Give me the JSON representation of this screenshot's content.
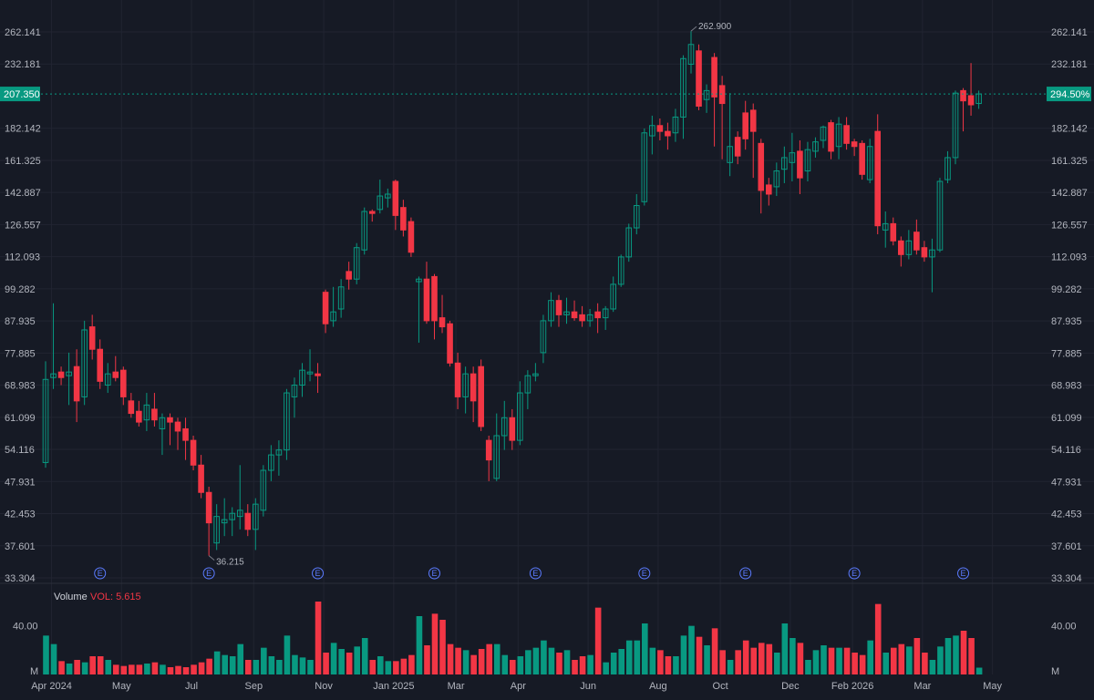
{
  "colors": {
    "background": "#161a25",
    "grid": "#212431",
    "up": "#089981",
    "down": "#f23645",
    "text": "#b2b5be",
    "last_price_tag": "#089981",
    "earnings": "#5b7bff"
  },
  "chart_data": {
    "type": "candlestick",
    "y_scale": "log",
    "ylim": [
      33.304,
      262.141
    ],
    "y_ticks": [
      "262.141",
      "232.181",
      "182.142",
      "161.325",
      "142.887",
      "126.557",
      "112.093",
      "99.282",
      "87.935",
      "77.885",
      "68.983",
      "61.099",
      "54.116",
      "47.931",
      "42.453",
      "37.601",
      "33.304"
    ],
    "x_ticks": [
      "Apr 2024",
      "May",
      "Jul",
      "Sep",
      "Nov",
      "Jan 2025",
      "Mar",
      "Apr",
      "Jun",
      "Aug",
      "Oct",
      "Dec",
      "Feb 2026",
      "Mar",
      "May"
    ],
    "last_price": {
      "value": "207.350",
      "change": "294.50%"
    },
    "annotations": {
      "high": "262.900",
      "low": "36.215"
    },
    "earnings_label": "E",
    "earnings_count": 9,
    "volume": {
      "title": "Volume",
      "value_label": "VOL: 5.615",
      "ticks": [
        "40.00",
        "M"
      ],
      "max": 60
    },
    "candles": [
      {
        "o": 51.5,
        "h": 75.5,
        "l": 50.5,
        "c": 70.5,
        "v": 32
      },
      {
        "o": 71.0,
        "h": 94.0,
        "l": 68.0,
        "c": 72.0,
        "v": 25
      },
      {
        "o": 72.5,
        "h": 74.0,
        "l": 69.0,
        "c": 71.0,
        "v": 11
      },
      {
        "o": 71.5,
        "h": 78.0,
        "l": 64.0,
        "c": 72.5,
        "v": 9
      },
      {
        "o": 74.0,
        "h": 79.0,
        "l": 60.0,
        "c": 65.0,
        "v": 12
      },
      {
        "o": 66.0,
        "h": 88.0,
        "l": 64.0,
        "c": 85.0,
        "v": 10
      },
      {
        "o": 86.0,
        "h": 90.0,
        "l": 76.0,
        "c": 79.0,
        "v": 15
      },
      {
        "o": 79.0,
        "h": 82.0,
        "l": 68.0,
        "c": 70.0,
        "v": 15
      },
      {
        "o": 69.0,
        "h": 75.0,
        "l": 67.0,
        "c": 72.0,
        "v": 12
      },
      {
        "o": 72.5,
        "h": 77.0,
        "l": 70.0,
        "c": 71.0,
        "v": 8
      },
      {
        "o": 73.0,
        "h": 74.0,
        "l": 64.0,
        "c": 66.0,
        "v": 7
      },
      {
        "o": 65.0,
        "h": 67.0,
        "l": 61.0,
        "c": 62.0,
        "v": 8
      },
      {
        "o": 62.5,
        "h": 65.0,
        "l": 59.0,
        "c": 60.0,
        "v": 8
      },
      {
        "o": 60.5,
        "h": 67.0,
        "l": 58.0,
        "c": 64.0,
        "v": 9
      },
      {
        "o": 63.0,
        "h": 67.0,
        "l": 59.0,
        "c": 60.5,
        "v": 10
      },
      {
        "o": 58.5,
        "h": 62.0,
        "l": 53.0,
        "c": 61.0,
        "v": 8
      },
      {
        "o": 61.0,
        "h": 62.0,
        "l": 55.0,
        "c": 60.0,
        "v": 6
      },
      {
        "o": 60.0,
        "h": 61.0,
        "l": 54.0,
        "c": 58.0,
        "v": 7
      },
      {
        "o": 58.5,
        "h": 61.0,
        "l": 52.0,
        "c": 56.0,
        "v": 6
      },
      {
        "o": 56.0,
        "h": 57.0,
        "l": 50.0,
        "c": 51.0,
        "v": 8
      },
      {
        "o": 51.0,
        "h": 53.0,
        "l": 45.0,
        "c": 46.0,
        "v": 10
      },
      {
        "o": 46.0,
        "h": 47.0,
        "l": 36.215,
        "c": 41.0,
        "v": 13
      },
      {
        "o": 38.0,
        "h": 44.0,
        "l": 37.0,
        "c": 42.0,
        "v": 19
      },
      {
        "o": 41.0,
        "h": 45.0,
        "l": 39.0,
        "c": 41.5,
        "v": 16
      },
      {
        "o": 41.5,
        "h": 43.5,
        "l": 39.0,
        "c": 42.5,
        "v": 15
      },
      {
        "o": 42.0,
        "h": 51.0,
        "l": 40.0,
        "c": 43.0,
        "v": 25
      },
      {
        "o": 42.5,
        "h": 44.0,
        "l": 39.0,
        "c": 40.0,
        "v": 12
      },
      {
        "o": 40.0,
        "h": 45.0,
        "l": 37.0,
        "c": 44.0,
        "v": 12
      },
      {
        "o": 43.0,
        "h": 51.0,
        "l": 42.0,
        "c": 50.0,
        "v": 22
      },
      {
        "o": 50.0,
        "h": 55.0,
        "l": 48.0,
        "c": 53.0,
        "v": 15
      },
      {
        "o": 53.0,
        "h": 56.0,
        "l": 49.0,
        "c": 54.0,
        "v": 12
      },
      {
        "o": 54.0,
        "h": 68.0,
        "l": 52.0,
        "c": 67.0,
        "v": 32
      },
      {
        "o": 66.0,
        "h": 71.0,
        "l": 61.0,
        "c": 69.0,
        "v": 16
      },
      {
        "o": 69.0,
        "h": 75.0,
        "l": 66.0,
        "c": 73.0,
        "v": 14
      },
      {
        "o": 72.0,
        "h": 79.0,
        "l": 70.0,
        "c": 72.5,
        "v": 12
      },
      {
        "o": 72.0,
        "h": 75.0,
        "l": 67.0,
        "c": 71.5,
        "v": 60
      },
      {
        "o": 98.0,
        "h": 99.0,
        "l": 84.0,
        "c": 87.0,
        "v": 18
      },
      {
        "o": 88.0,
        "h": 100.0,
        "l": 86.0,
        "c": 91.0,
        "v": 26
      },
      {
        "o": 92.0,
        "h": 103.0,
        "l": 89.0,
        "c": 100.0,
        "v": 21
      },
      {
        "o": 106.0,
        "h": 110.0,
        "l": 99.0,
        "c": 103.0,
        "v": 18
      },
      {
        "o": 103.0,
        "h": 118.0,
        "l": 101.0,
        "c": 116.0,
        "v": 23
      },
      {
        "o": 115.0,
        "h": 135.0,
        "l": 113.0,
        "c": 133.0,
        "v": 30
      },
      {
        "o": 133.0,
        "h": 134.0,
        "l": 128.0,
        "c": 132.0,
        "v": 12
      },
      {
        "o": 134.0,
        "h": 150.0,
        "l": 132.0,
        "c": 141.0,
        "v": 15
      },
      {
        "o": 140.0,
        "h": 145.0,
        "l": 135.0,
        "c": 142.0,
        "v": 11
      },
      {
        "o": 149.0,
        "h": 150.0,
        "l": 124.0,
        "c": 131.0,
        "v": 11
      },
      {
        "o": 135.0,
        "h": 139.0,
        "l": 121.0,
        "c": 124.0,
        "v": 13
      },
      {
        "o": 128.0,
        "h": 130.0,
        "l": 112.0,
        "c": 114.0,
        "v": 16
      },
      {
        "o": 102.0,
        "h": 104.0,
        "l": 81.0,
        "c": 103.0,
        "v": 48
      },
      {
        "o": 103.0,
        "h": 110.0,
        "l": 87.0,
        "c": 88.0,
        "v": 24
      },
      {
        "o": 104.0,
        "h": 105.0,
        "l": 82.0,
        "c": 88.0,
        "v": 50
      },
      {
        "o": 89.0,
        "h": 97.0,
        "l": 84.0,
        "c": 86.0,
        "v": 45
      },
      {
        "o": 87.0,
        "h": 88.0,
        "l": 74.0,
        "c": 75.0,
        "v": 25
      },
      {
        "o": 75.0,
        "h": 78.0,
        "l": 63.0,
        "c": 66.0,
        "v": 22
      },
      {
        "o": 66.0,
        "h": 74.0,
        "l": 62.0,
        "c": 72.0,
        "v": 20
      },
      {
        "o": 72.0,
        "h": 74.0,
        "l": 60.0,
        "c": 65.0,
        "v": 16
      },
      {
        "o": 74.0,
        "h": 76.0,
        "l": 58.0,
        "c": 59.0,
        "v": 21
      },
      {
        "o": 56.0,
        "h": 57.0,
        "l": 48.0,
        "c": 52.0,
        "v": 25
      },
      {
        "o": 48.5,
        "h": 62.0,
        "l": 48.0,
        "c": 57.0,
        "v": 25
      },
      {
        "o": 57.0,
        "h": 65.0,
        "l": 54.0,
        "c": 61.0,
        "v": 16
      },
      {
        "o": 61.0,
        "h": 63.0,
        "l": 54.0,
        "c": 56.0,
        "v": 12
      },
      {
        "o": 56.0,
        "h": 70.0,
        "l": 55.0,
        "c": 67.0,
        "v": 15
      },
      {
        "o": 67.0,
        "h": 73.0,
        "l": 63.0,
        "c": 71.5,
        "v": 20
      },
      {
        "o": 71.5,
        "h": 75.0,
        "l": 70.0,
        "c": 72.0,
        "v": 22
      },
      {
        "o": 78.0,
        "h": 90.0,
        "l": 75.0,
        "c": 88.0,
        "v": 28
      },
      {
        "o": 88.0,
        "h": 98.0,
        "l": 86.0,
        "c": 95.0,
        "v": 22
      },
      {
        "o": 95.0,
        "h": 97.0,
        "l": 86.0,
        "c": 90.0,
        "v": 18
      },
      {
        "o": 90.0,
        "h": 96.0,
        "l": 87.0,
        "c": 91.0,
        "v": 20
      },
      {
        "o": 91.0,
        "h": 95.0,
        "l": 88.0,
        "c": 89.0,
        "v": 12
      },
      {
        "o": 90.0,
        "h": 93.0,
        "l": 86.0,
        "c": 88.0,
        "v": 15
      },
      {
        "o": 88.0,
        "h": 92.0,
        "l": 86.0,
        "c": 90.0,
        "v": 16
      },
      {
        "o": 91.0,
        "h": 94.0,
        "l": 84.0,
        "c": 89.0,
        "v": 55
      },
      {
        "o": 89.0,
        "h": 93.0,
        "l": 85.0,
        "c": 92.0,
        "v": 10
      },
      {
        "o": 92.0,
        "h": 104.0,
        "l": 91.0,
        "c": 101.0,
        "v": 18
      },
      {
        "o": 101.0,
        "h": 113.0,
        "l": 100.0,
        "c": 112.0,
        "v": 21
      },
      {
        "o": 112.0,
        "h": 127.0,
        "l": 110.0,
        "c": 125.0,
        "v": 28
      },
      {
        "o": 125.0,
        "h": 142.0,
        "l": 122.0,
        "c": 136.0,
        "v": 28
      },
      {
        "o": 138.0,
        "h": 182.0,
        "l": 136.0,
        "c": 179.0,
        "v": 42
      },
      {
        "o": 177.0,
        "h": 191.0,
        "l": 165.0,
        "c": 184.0,
        "v": 22
      },
      {
        "o": 184.0,
        "h": 189.0,
        "l": 174.0,
        "c": 180.0,
        "v": 20
      },
      {
        "o": 180.0,
        "h": 186.0,
        "l": 168.0,
        "c": 177.0,
        "v": 15
      },
      {
        "o": 179.0,
        "h": 196.0,
        "l": 173.0,
        "c": 190.0,
        "v": 15
      },
      {
        "o": 190.0,
        "h": 240.0,
        "l": 175.0,
        "c": 237.0,
        "v": 32
      },
      {
        "o": 232.0,
        "h": 262.9,
        "l": 224.0,
        "c": 250.0,
        "v": 40
      },
      {
        "o": 244.0,
        "h": 250.0,
        "l": 195.0,
        "c": 198.0,
        "v": 31
      },
      {
        "o": 203.0,
        "h": 215.0,
        "l": 193.0,
        "c": 210.0,
        "v": 24
      },
      {
        "o": 238.0,
        "h": 242.0,
        "l": 170.0,
        "c": 205.0,
        "v": 38
      },
      {
        "o": 214.0,
        "h": 222.0,
        "l": 162.0,
        "c": 200.0,
        "v": 20
      },
      {
        "o": 160.0,
        "h": 208.0,
        "l": 152.0,
        "c": 170.0,
        "v": 12
      },
      {
        "o": 176.0,
        "h": 180.0,
        "l": 159.0,
        "c": 164.0,
        "v": 20
      },
      {
        "o": 193.0,
        "h": 202.0,
        "l": 168.0,
        "c": 175.0,
        "v": 28
      },
      {
        "o": 195.0,
        "h": 200.0,
        "l": 151.0,
        "c": 180.0,
        "v": 22
      },
      {
        "o": 172.0,
        "h": 175.0,
        "l": 132.0,
        "c": 144.0,
        "v": 26
      },
      {
        "o": 147.0,
        "h": 151.0,
        "l": 136.0,
        "c": 142.0,
        "v": 25
      },
      {
        "o": 146.0,
        "h": 160.0,
        "l": 141.0,
        "c": 155.0,
        "v": 18
      },
      {
        "o": 156.0,
        "h": 170.0,
        "l": 148.0,
        "c": 163.0,
        "v": 42
      },
      {
        "o": 160.0,
        "h": 179.0,
        "l": 149.0,
        "c": 166.0,
        "v": 30
      },
      {
        "o": 167.0,
        "h": 174.0,
        "l": 142.0,
        "c": 151.0,
        "v": 26
      },
      {
        "o": 155.0,
        "h": 173.0,
        "l": 149.0,
        "c": 168.0,
        "v": 12
      },
      {
        "o": 167.0,
        "h": 176.0,
        "l": 163.0,
        "c": 173.0,
        "v": 20
      },
      {
        "o": 174.0,
        "h": 184.0,
        "l": 169.0,
        "c": 183.0,
        "v": 24
      },
      {
        "o": 186.0,
        "h": 188.0,
        "l": 162.0,
        "c": 167.0,
        "v": 22
      },
      {
        "o": 170.0,
        "h": 190.0,
        "l": 162.0,
        "c": 185.0,
        "v": 22
      },
      {
        "o": 184.0,
        "h": 190.0,
        "l": 168.0,
        "c": 172.0,
        "v": 22
      },
      {
        "o": 173.0,
        "h": 175.0,
        "l": 164.0,
        "c": 170.0,
        "v": 18
      },
      {
        "o": 172.0,
        "h": 174.0,
        "l": 150.0,
        "c": 153.0,
        "v": 16
      },
      {
        "o": 150.0,
        "h": 175.0,
        "l": 148.0,
        "c": 170.0,
        "v": 28
      },
      {
        "o": 180.0,
        "h": 192.0,
        "l": 122.0,
        "c": 126.0,
        "v": 58
      },
      {
        "o": 124.0,
        "h": 133.0,
        "l": 116.0,
        "c": 127.0,
        "v": 18
      },
      {
        "o": 127.0,
        "h": 130.0,
        "l": 117.0,
        "c": 119.0,
        "v": 22
      },
      {
        "o": 119.0,
        "h": 121.0,
        "l": 108.0,
        "c": 113.0,
        "v": 25
      },
      {
        "o": 113.0,
        "h": 124.0,
        "l": 111.0,
        "c": 119.0,
        "v": 23
      },
      {
        "o": 123.0,
        "h": 129.0,
        "l": 113.0,
        "c": 115.0,
        "v": 30
      },
      {
        "o": 116.0,
        "h": 119.0,
        "l": 110.0,
        "c": 112.0,
        "v": 18
      },
      {
        "o": 112.0,
        "h": 120.0,
        "l": 98.0,
        "c": 115.0,
        "v": 12
      },
      {
        "o": 115.0,
        "h": 151.0,
        "l": 114.0,
        "c": 149.0,
        "v": 23
      },
      {
        "o": 150.0,
        "h": 167.0,
        "l": 148.0,
        "c": 163.0,
        "v": 30
      },
      {
        "o": 163.0,
        "h": 210.0,
        "l": 159.0,
        "c": 208.0,
        "v": 32
      },
      {
        "o": 210.0,
        "h": 212.0,
        "l": 180.0,
        "c": 202.0,
        "v": 36
      },
      {
        "o": 206.0,
        "h": 233.0,
        "l": 191.0,
        "c": 199.0,
        "v": 30
      },
      {
        "o": 200.0,
        "h": 210.0,
        "l": 196.0,
        "c": 207.35,
        "v": 5.615
      }
    ]
  }
}
